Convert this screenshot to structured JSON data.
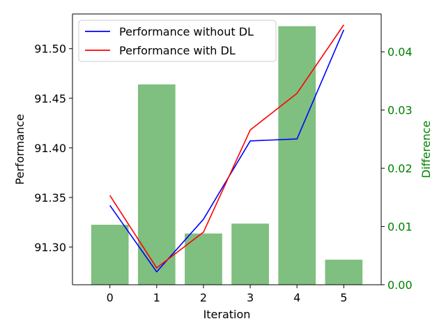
{
  "chart_data": {
    "type": "bar+line",
    "xlabel": "Iteration",
    "ylabel_left": "Performance",
    "ylabel_right": "Difference",
    "categories": [
      0,
      1,
      2,
      3,
      4,
      5
    ],
    "x_ticks": [
      "0",
      "1",
      "2",
      "3",
      "4",
      "5"
    ],
    "left_axis": {
      "ylim": [
        91.262,
        91.535
      ],
      "ticks": [
        91.3,
        91.35,
        91.4,
        91.45,
        91.5
      ],
      "tick_labels": [
        "91.30",
        "91.35",
        "91.40",
        "91.45",
        "91.50"
      ]
    },
    "right_axis": {
      "ylim": [
        0,
        0.0465
      ],
      "ticks": [
        0.0,
        0.01,
        0.02,
        0.03,
        0.04
      ],
      "tick_labels": [
        "0.00",
        "0.01",
        "0.02",
        "0.03",
        "0.04"
      ],
      "color": "#008000"
    },
    "series": [
      {
        "name": "Performance without DL",
        "kind": "line",
        "axis": "left",
        "color": "#0000ff",
        "values": [
          91.342,
          91.275,
          91.328,
          91.407,
          91.409,
          91.519
        ]
      },
      {
        "name": "Performance with DL",
        "kind": "line",
        "axis": "left",
        "color": "#ff0000",
        "values": [
          91.352,
          91.279,
          91.315,
          91.418,
          91.455,
          91.524
        ]
      }
    ],
    "bars": {
      "axis": "right",
      "color": "#008000",
      "opacity": 0.5,
      "values": [
        0.0103,
        0.0344,
        0.0088,
        0.0105,
        0.0444,
        0.0043
      ]
    },
    "legend_position": "upper-left",
    "grid": false
  }
}
